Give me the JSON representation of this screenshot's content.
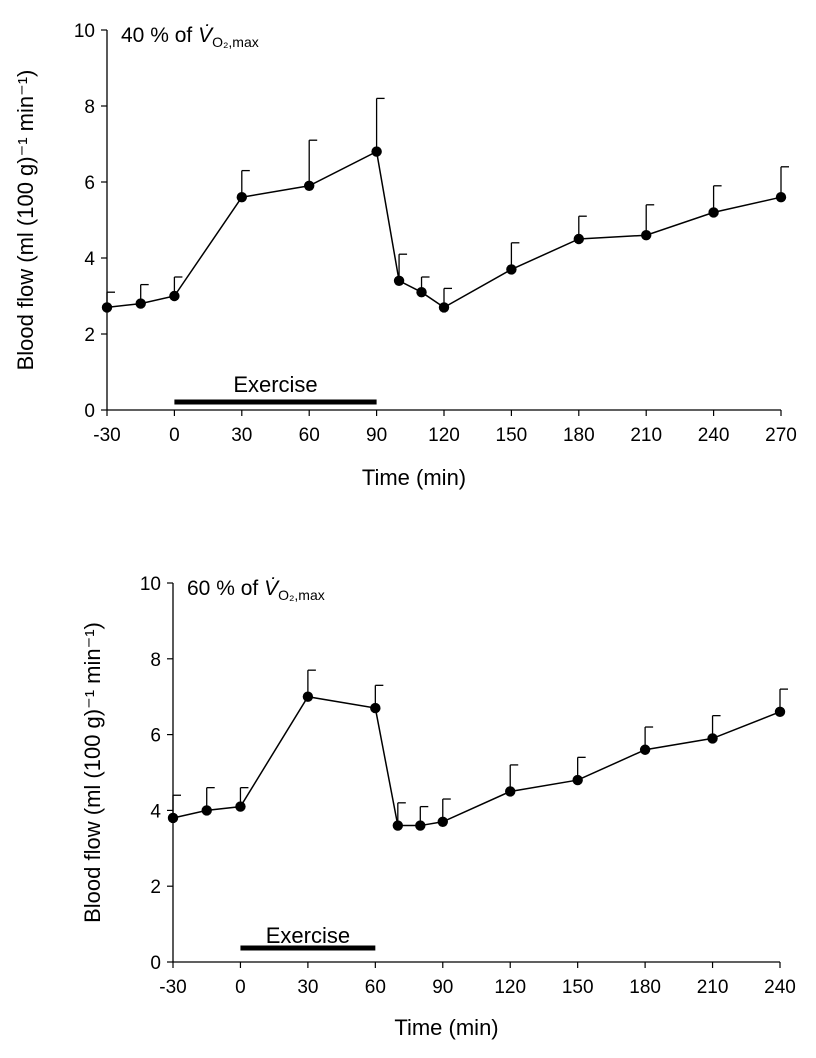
{
  "chart_data": [
    {
      "type": "line",
      "title": "",
      "panel_label": {
        "prefix": "40 % of ",
        "var": "V",
        "subscript": "O₂,max"
      },
      "xlabel": "Time (min)",
      "ylabel": "Blood flow (ml (100 g)⁻¹ min⁻¹)",
      "xlim": [
        -30,
        270
      ],
      "ylim": [
        0,
        10
      ],
      "x_ticks": [
        -30,
        0,
        30,
        60,
        90,
        120,
        150,
        180,
        210,
        240,
        270
      ],
      "y_ticks": [
        0,
        2,
        4,
        6,
        8,
        10
      ],
      "grid": false,
      "series": [
        {
          "x": [
            -30,
            -15,
            0,
            30,
            60,
            90,
            100,
            110,
            120,
            150,
            180,
            210,
            240,
            270
          ],
          "y": [
            2.7,
            2.8,
            3.0,
            5.6,
            5.9,
            6.8,
            3.4,
            3.1,
            2.7,
            3.7,
            4.5,
            4.6,
            5.2,
            5.6
          ],
          "error_upper": [
            3.1,
            3.3,
            3.5,
            6.3,
            7.1,
            8.2,
            4.1,
            3.5,
            3.2,
            4.4,
            5.1,
            5.4,
            5.9,
            6.4
          ]
        }
      ],
      "exercise_bar": {
        "label": "Exercise",
        "start": 0,
        "end": 90
      }
    },
    {
      "type": "line",
      "title": "",
      "panel_label": {
        "prefix": "60 % of ",
        "var": "V",
        "subscript": "O₂,max"
      },
      "xlabel": "Time (min)",
      "ylabel": "Blood flow (ml (100 g)⁻¹ min⁻¹)",
      "xlim": [
        -30,
        240
      ],
      "ylim": [
        0,
        10
      ],
      "x_ticks": [
        -30,
        0,
        30,
        60,
        90,
        120,
        150,
        180,
        210,
        240
      ],
      "y_ticks": [
        0,
        2,
        4,
        6,
        8,
        10
      ],
      "grid": false,
      "series": [
        {
          "x": [
            -30,
            -15,
            0,
            30,
            60,
            70,
            80,
            90,
            120,
            150,
            180,
            210,
            240
          ],
          "y": [
            3.8,
            4.0,
            4.1,
            7.0,
            6.7,
            3.6,
            3.6,
            3.7,
            4.5,
            4.8,
            5.6,
            5.9,
            6.6
          ],
          "error_upper": [
            4.4,
            4.6,
            4.6,
            7.7,
            7.3,
            4.2,
            4.1,
            4.3,
            5.2,
            5.4,
            6.2,
            6.5,
            7.2
          ]
        }
      ],
      "exercise_bar": {
        "label": "Exercise",
        "start": 0,
        "end": 60
      }
    }
  ]
}
